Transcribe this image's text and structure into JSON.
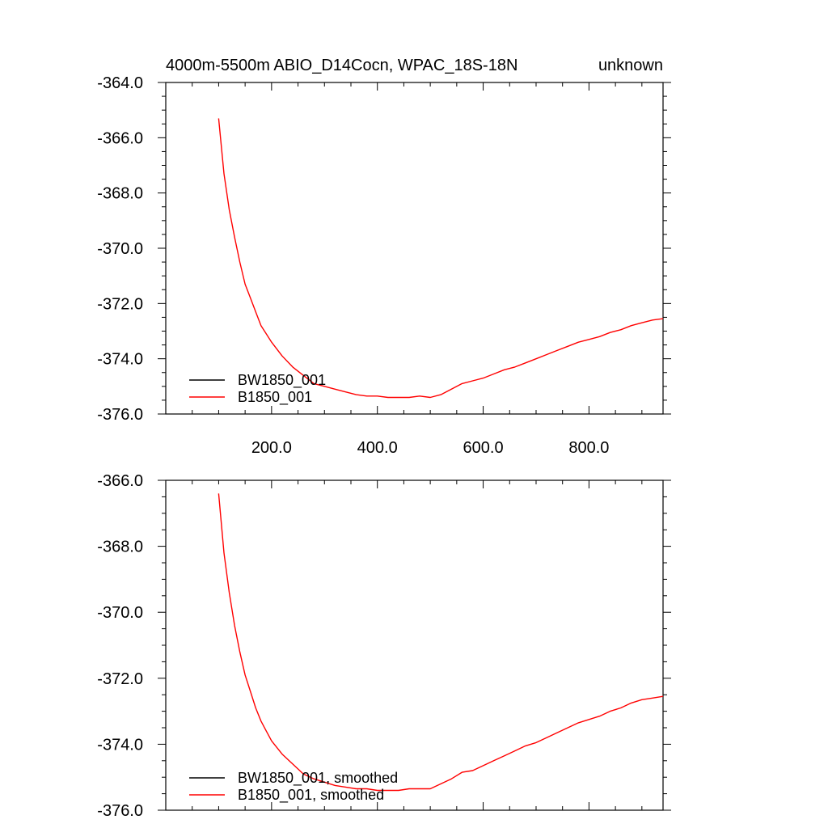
{
  "chart_data": [
    {
      "type": "line",
      "title_left": "4000m-5500m ABIO_D14Cocn, WPAC_18S-18N",
      "title_right": "unknown",
      "xlim": [
        0,
        940
      ],
      "ylim": [
        -376,
        -364
      ],
      "x_ticks": [
        200,
        400,
        600,
        800
      ],
      "x_tick_labels": [
        "200.0",
        "400.0",
        "600.0",
        "800.0"
      ],
      "y_ticks": [
        -364,
        -366,
        -368,
        -370,
        -372,
        -374,
        -376
      ],
      "y_tick_labels": [
        "-364.0",
        "-366.0",
        "-368.0",
        "-370.0",
        "-372.0",
        "-374.0",
        "-376.0"
      ],
      "legend_position": "bottom-left",
      "series": [
        {
          "name": "BW1850_001",
          "color": "#000000",
          "x": [],
          "y": []
        },
        {
          "name": "B1850_001",
          "color": "#ff0000",
          "x": [
            100,
            110,
            120,
            130,
            140,
            150,
            160,
            170,
            180,
            190,
            200,
            220,
            240,
            260,
            280,
            300,
            320,
            340,
            360,
            380,
            400,
            420,
            440,
            460,
            480,
            500,
            520,
            540,
            560,
            580,
            600,
            620,
            640,
            660,
            680,
            700,
            720,
            740,
            760,
            780,
            800,
            820,
            840,
            860,
            880,
            900,
            920,
            940
          ],
          "y": [
            -365.3,
            -367.3,
            -368.6,
            -369.6,
            -370.5,
            -371.3,
            -371.8,
            -372.3,
            -372.8,
            -373.1,
            -373.4,
            -373.9,
            -374.3,
            -374.6,
            -374.9,
            -375.0,
            -375.1,
            -375.2,
            -375.3,
            -375.35,
            -375.35,
            -375.4,
            -375.4,
            -375.4,
            -375.35,
            -375.4,
            -375.3,
            -375.1,
            -374.9,
            -374.8,
            -374.7,
            -374.55,
            -374.4,
            -374.3,
            -374.15,
            -374.0,
            -373.85,
            -373.7,
            -373.55,
            -373.4,
            -373.3,
            -373.2,
            -373.05,
            -372.95,
            -372.8,
            -372.7,
            -372.6,
            -372.55
          ]
        }
      ]
    },
    {
      "type": "line",
      "xlim": [
        0,
        940
      ],
      "ylim": [
        -376,
        -366
      ],
      "x_ticks": [
        200,
        400,
        600,
        800
      ],
      "y_ticks": [
        -366,
        -368,
        -370,
        -372,
        -374,
        -376
      ],
      "y_tick_labels": [
        "-366.0",
        "-368.0",
        "-370.0",
        "-372.0",
        "-374.0",
        "-376.0"
      ],
      "legend_position": "bottom-left",
      "series": [
        {
          "name": "BW1850_001, smoothed",
          "color": "#000000",
          "x": [],
          "y": []
        },
        {
          "name": "B1850_001, smoothed",
          "color": "#ff0000",
          "x": [
            100,
            110,
            120,
            130,
            140,
            150,
            160,
            170,
            180,
            190,
            200,
            220,
            240,
            260,
            280,
            300,
            320,
            340,
            360,
            380,
            400,
            420,
            440,
            460,
            480,
            500,
            520,
            540,
            560,
            580,
            600,
            620,
            640,
            660,
            680,
            700,
            720,
            740,
            760,
            780,
            800,
            820,
            840,
            860,
            880,
            900,
            920,
            940
          ],
          "y": [
            -366.4,
            -368.2,
            -369.4,
            -370.4,
            -371.2,
            -371.9,
            -372.4,
            -372.9,
            -373.3,
            -373.6,
            -373.9,
            -374.3,
            -374.6,
            -374.9,
            -375.05,
            -375.15,
            -375.25,
            -375.3,
            -375.35,
            -375.35,
            -375.4,
            -375.4,
            -375.4,
            -375.35,
            -375.35,
            -375.35,
            -375.2,
            -375.05,
            -374.85,
            -374.8,
            -374.65,
            -374.5,
            -374.35,
            -374.2,
            -374.05,
            -373.95,
            -373.8,
            -373.65,
            -373.5,
            -373.35,
            -373.25,
            -373.15,
            -373.0,
            -372.9,
            -372.75,
            -372.65,
            -372.6,
            -372.55
          ]
        }
      ]
    }
  ]
}
